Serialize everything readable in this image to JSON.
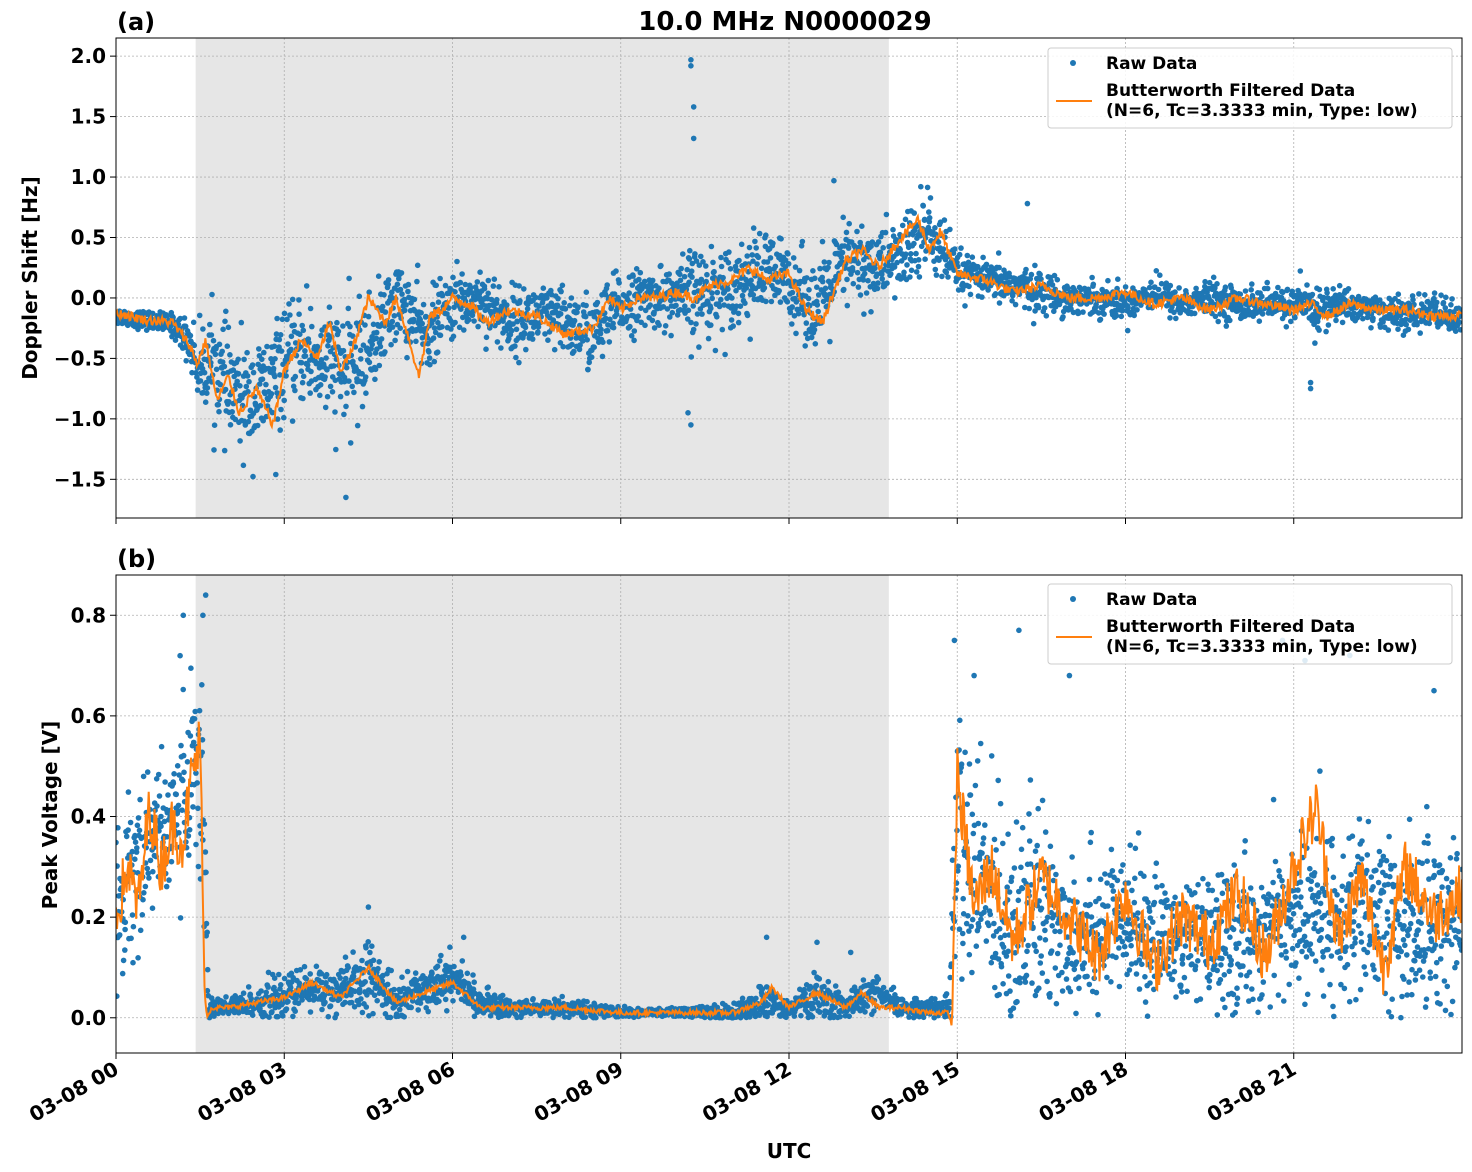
{
  "title": "10.0 MHz N0000029",
  "xlabel": "UTC",
  "colors": {
    "raw": "#1f77b4",
    "filtered": "#ff7f0e",
    "night_shade": "#e6e6e6",
    "grid": "#b0b0b0"
  },
  "legend": {
    "raw_label": "Raw Data",
    "filtered_line1": "Butterworth Filtered Data",
    "filtered_line2": "(N=6, Tc=3.3333 min, Type: low)"
  },
  "chart_data": [
    {
      "type": "scatter",
      "panel_label": "(a)",
      "ylabel": "Doppler Shift [Hz]",
      "xlim_hours": [
        0,
        24
      ],
      "ylim": [
        -1.82,
        2.15
      ],
      "shaded_range_hours": [
        1.42,
        13.78
      ],
      "xtick_labels": [
        "03-08 00",
        "03-08 03",
        "03-08 06",
        "03-08 09",
        "03-08 12",
        "03-08 15",
        "03-08 18",
        "03-08 21"
      ],
      "ytick_values": [
        -1.5,
        -1.0,
        -0.5,
        0.0,
        0.5,
        1.0,
        1.5,
        2.0
      ],
      "ytick_labels": [
        "−1.5",
        "−1.0",
        "−0.5",
        "0.0",
        "0.5",
        "1.0",
        "1.5",
        "2.0"
      ],
      "grid": true,
      "legend_position": "upper right",
      "series": [
        {
          "name": "Raw Data",
          "style": "points",
          "x_hours": [
            0,
            0.5,
            1.0,
            1.3,
            1.5,
            1.7,
            2.0,
            2.3,
            2.6,
            3.0,
            3.3,
            3.7,
            4.1,
            4.5,
            5.0,
            5.5,
            6.0,
            6.5,
            7.0,
            7.5,
            8.0,
            8.5,
            9.0,
            9.5,
            10.0,
            10.3,
            10.6,
            11.0,
            11.5,
            12.0,
            12.5,
            13.0,
            13.5,
            14.0,
            14.5,
            15.0,
            15.5,
            16.0,
            16.5,
            17.0,
            17.5,
            18.0,
            18.5,
            19.0,
            19.5,
            20.0,
            20.5,
            21.0,
            21.4,
            21.8,
            22.5,
            23.0,
            23.5,
            24.0
          ],
          "center": [
            -0.15,
            -0.18,
            -0.22,
            -0.35,
            -0.6,
            -0.5,
            -0.75,
            -0.85,
            -0.8,
            -0.55,
            -0.45,
            -0.55,
            -0.6,
            -0.45,
            0.0,
            -0.3,
            -0.05,
            0.0,
            -0.2,
            -0.15,
            -0.2,
            -0.3,
            -0.05,
            0.0,
            0.0,
            0.02,
            0.05,
            0.1,
            0.2,
            0.15,
            -0.1,
            0.3,
            0.25,
            0.35,
            0.55,
            0.2,
            0.15,
            0.1,
            0.05,
            0.0,
            0.0,
            -0.05,
            0.05,
            -0.05,
            0.0,
            -0.05,
            -0.05,
            -0.05,
            -0.1,
            -0.05,
            -0.1,
            -0.15,
            -0.1,
            -0.2
          ],
          "spread": [
            0.08,
            0.08,
            0.1,
            0.2,
            0.35,
            0.45,
            0.5,
            0.5,
            0.5,
            0.45,
            0.45,
            0.5,
            0.55,
            0.45,
            0.35,
            0.35,
            0.3,
            0.3,
            0.3,
            0.3,
            0.3,
            0.35,
            0.3,
            0.25,
            0.3,
            0.45,
            0.4,
            0.35,
            0.4,
            0.35,
            0.4,
            0.4,
            0.35,
            0.35,
            0.4,
            0.2,
            0.15,
            0.2,
            0.18,
            0.15,
            0.15,
            0.15,
            0.15,
            0.15,
            0.15,
            0.15,
            0.15,
            0.15,
            0.25,
            0.15,
            0.15,
            0.15,
            0.15,
            0.15
          ],
          "outliers": [
            [
              10.25,
              1.97
            ],
            [
              10.25,
              1.92
            ],
            [
              10.3,
              1.58
            ],
            [
              10.3,
              1.32
            ],
            [
              10.25,
              -1.05
            ],
            [
              10.2,
              -0.95
            ],
            [
              4.1,
              -1.65
            ],
            [
              2.85,
              -1.46
            ],
            [
              3.4,
              0.1
            ],
            [
              16.25,
              0.78
            ],
            [
              21.3,
              -0.75
            ],
            [
              21.3,
              -0.7
            ],
            [
              12.8,
              0.97
            ],
            [
              14.35,
              0.92
            ]
          ]
        },
        {
          "name": "Butterworth Filtered Data (N=6, Tc=3.3333 min, Type: low)",
          "style": "line",
          "x_hours": [
            0,
            0.5,
            1.0,
            1.3,
            1.45,
            1.6,
            1.8,
            2.0,
            2.2,
            2.5,
            2.8,
            3.0,
            3.3,
            3.6,
            3.8,
            4.0,
            4.2,
            4.5,
            4.8,
            5.0,
            5.2,
            5.4,
            5.6,
            5.8,
            6.0,
            6.3,
            6.6,
            7.0,
            7.5,
            8.0,
            8.5,
            8.8,
            9.0,
            9.3,
            9.6,
            10.0,
            10.3,
            10.6,
            11.0,
            11.3,
            11.6,
            12.0,
            12.3,
            12.6,
            13.0,
            13.3,
            13.6,
            14.0,
            14.3,
            14.5,
            14.7,
            15.0,
            15.5,
            16.0,
            16.5,
            17.0,
            17.5,
            18.0,
            18.5,
            19.0,
            19.5,
            20.0,
            20.5,
            21.0,
            21.3,
            21.6,
            22.0,
            22.5,
            23.0,
            23.5,
            24.0
          ],
          "y": [
            -0.12,
            -0.18,
            -0.2,
            -0.38,
            -0.55,
            -0.35,
            -0.85,
            -0.65,
            -0.95,
            -0.75,
            -1.05,
            -0.6,
            -0.35,
            -0.5,
            -0.2,
            -0.6,
            -0.45,
            0.0,
            -0.2,
            0.0,
            -0.3,
            -0.65,
            -0.15,
            -0.1,
            0.0,
            -0.05,
            -0.2,
            -0.1,
            -0.15,
            -0.3,
            -0.25,
            0.0,
            -0.1,
            0.0,
            0.0,
            0.05,
            0.0,
            0.1,
            0.15,
            0.25,
            0.15,
            0.2,
            -0.1,
            -0.2,
            0.3,
            0.4,
            0.25,
            0.5,
            0.65,
            0.4,
            0.55,
            0.2,
            0.15,
            0.05,
            0.1,
            0.0,
            0.0,
            0.05,
            -0.05,
            0.0,
            -0.1,
            0.0,
            -0.05,
            -0.1,
            -0.05,
            -0.15,
            -0.05,
            -0.1,
            -0.1,
            -0.15,
            -0.15
          ]
        }
      ]
    },
    {
      "type": "scatter",
      "panel_label": "(b)",
      "ylabel": "Peak Voltage [V]",
      "xlim_hours": [
        0,
        24
      ],
      "ylim": [
        -0.07,
        0.88
      ],
      "shaded_range_hours": [
        1.42,
        13.78
      ],
      "xtick_labels": [
        "03-08 00",
        "03-08 03",
        "03-08 06",
        "03-08 09",
        "03-08 12",
        "03-08 15",
        "03-08 18",
        "03-08 21"
      ],
      "ytick_values": [
        0.0,
        0.2,
        0.4,
        0.6,
        0.8
      ],
      "ytick_labels": [
        "0.0",
        "0.2",
        "0.4",
        "0.6",
        "0.8"
      ],
      "grid": true,
      "legend_position": "upper right",
      "series": [
        {
          "name": "Raw Data",
          "style": "points",
          "x_hours": [
            0,
            0.3,
            0.6,
            0.9,
            1.2,
            1.4,
            1.55,
            1.65,
            2.0,
            3.0,
            3.5,
            4.0,
            4.5,
            5.0,
            5.5,
            6.0,
            6.5,
            7.0,
            8.0,
            9.0,
            10.0,
            11.0,
            11.5,
            12.0,
            12.5,
            13.0,
            13.5,
            14.0,
            14.5,
            14.85,
            15.0,
            15.5,
            16.0,
            16.5,
            17.0,
            18.0,
            19.0,
            20.0,
            21.0,
            22.0,
            23.0,
            24.0
          ],
          "center": [
            0.2,
            0.3,
            0.35,
            0.38,
            0.45,
            0.5,
            0.45,
            0.02,
            0.02,
            0.04,
            0.06,
            0.05,
            0.08,
            0.03,
            0.06,
            0.08,
            0.03,
            0.02,
            0.02,
            0.01,
            0.01,
            0.01,
            0.03,
            0.02,
            0.04,
            0.02,
            0.05,
            0.02,
            0.02,
            0.02,
            0.35,
            0.25,
            0.2,
            0.2,
            0.18,
            0.18,
            0.15,
            0.15,
            0.2,
            0.2,
            0.18,
            0.2
          ],
          "spread": [
            0.2,
            0.18,
            0.15,
            0.15,
            0.2,
            0.25,
            0.3,
            0.03,
            0.02,
            0.05,
            0.05,
            0.05,
            0.08,
            0.04,
            0.05,
            0.05,
            0.03,
            0.02,
            0.02,
            0.01,
            0.01,
            0.02,
            0.04,
            0.02,
            0.05,
            0.03,
            0.04,
            0.02,
            0.02,
            0.03,
            0.3,
            0.25,
            0.25,
            0.22,
            0.18,
            0.15,
            0.13,
            0.15,
            0.18,
            0.18,
            0.2,
            0.2
          ],
          "outliers": [
            [
              1.6,
              0.84
            ],
            [
              1.55,
              0.8
            ],
            [
              1.2,
              0.8
            ],
            [
              4.5,
              0.22
            ],
            [
              6.2,
              0.16
            ],
            [
              11.6,
              0.16
            ],
            [
              12.5,
              0.15
            ],
            [
              13.1,
              0.13
            ],
            [
              14.95,
              0.75
            ],
            [
              16.1,
              0.77
            ],
            [
              20.8,
              0.75
            ],
            [
              21.2,
              0.71
            ],
            [
              22.0,
              0.72
            ],
            [
              17.0,
              0.68
            ],
            [
              15.3,
              0.68
            ],
            [
              23.5,
              0.65
            ]
          ]
        },
        {
          "name": "Butterworth Filtered Data (N=6, Tc=3.3333 min, Type: low)",
          "style": "line",
          "x_hours": [
            0,
            0.2,
            0.4,
            0.6,
            0.8,
            1.0,
            1.2,
            1.35,
            1.5,
            1.58,
            1.62,
            1.7,
            2.0,
            3.0,
            3.5,
            4.0,
            4.5,
            5.0,
            5.5,
            6.0,
            6.5,
            7.0,
            8.0,
            9.0,
            10.0,
            11.0,
            11.5,
            11.7,
            12.0,
            12.5,
            13.0,
            13.3,
            13.6,
            14.0,
            14.5,
            14.85,
            14.9,
            15.0,
            15.3,
            15.6,
            16.0,
            16.5,
            17.0,
            17.5,
            18.0,
            18.5,
            19.0,
            19.5,
            20.0,
            20.5,
            21.0,
            21.4,
            21.8,
            22.2,
            22.6,
            23.0,
            23.5,
            24.0
          ],
          "y": [
            0.2,
            0.3,
            0.22,
            0.42,
            0.3,
            0.38,
            0.35,
            0.48,
            0.55,
            0.05,
            0.0,
            0.02,
            0.02,
            0.04,
            0.07,
            0.04,
            0.1,
            0.03,
            0.05,
            0.07,
            0.02,
            0.02,
            0.02,
            0.01,
            0.01,
            0.01,
            0.03,
            0.06,
            0.02,
            0.05,
            0.02,
            0.05,
            0.02,
            0.02,
            0.01,
            0.01,
            -0.02,
            0.48,
            0.22,
            0.3,
            0.15,
            0.28,
            0.2,
            0.12,
            0.25,
            0.1,
            0.2,
            0.15,
            0.25,
            0.12,
            0.3,
            0.42,
            0.15,
            0.28,
            0.1,
            0.3,
            0.2,
            0.25
          ]
        }
      ]
    }
  ]
}
